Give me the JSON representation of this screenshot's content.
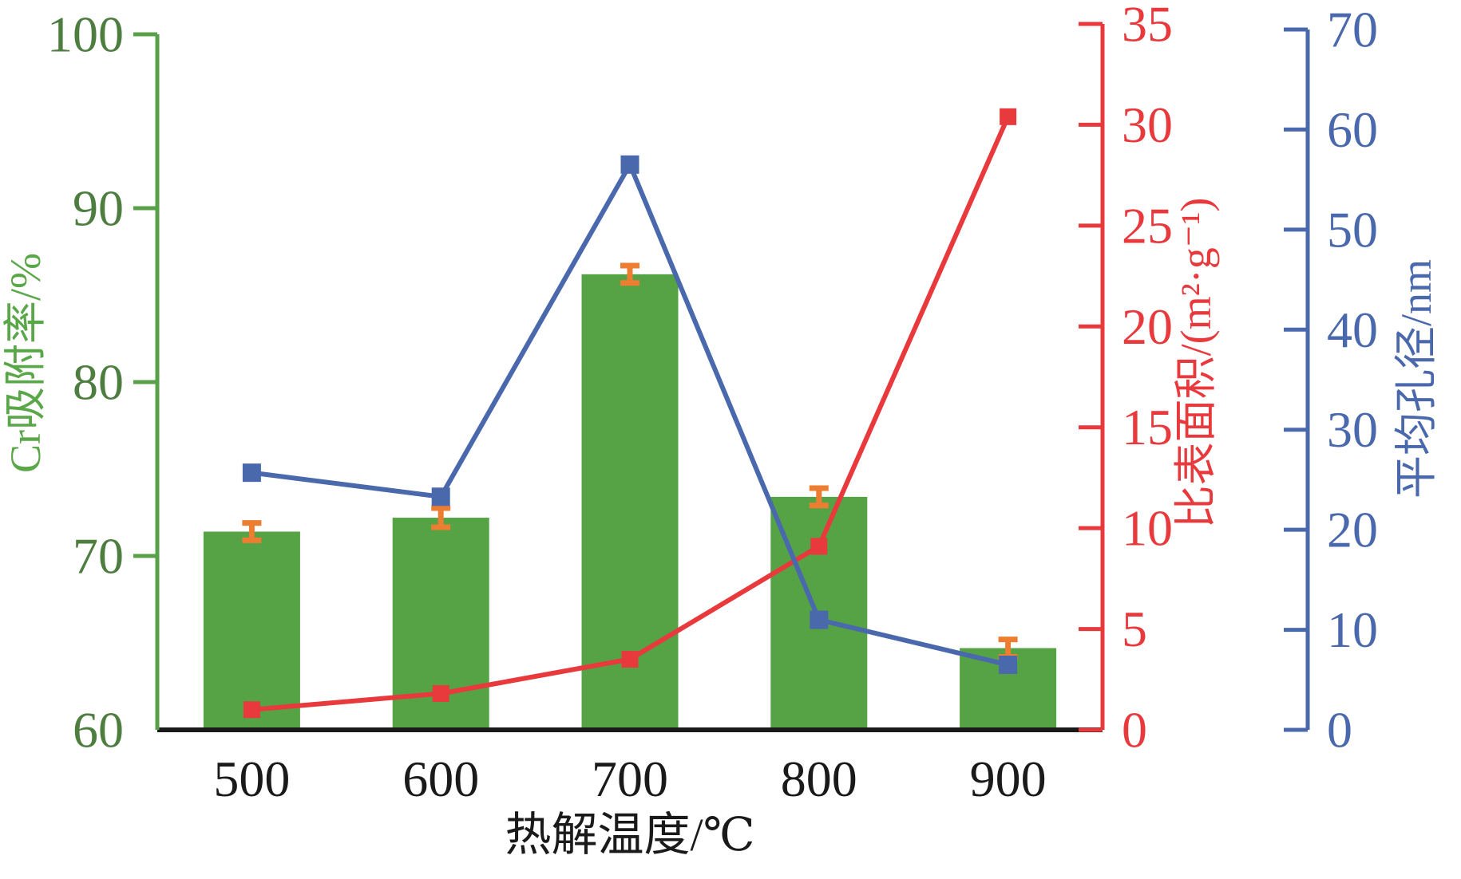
{
  "chart_data": {
    "type": "bar",
    "subtype": "combo-bar-line-dual-secondary-axes",
    "title": "",
    "grid": false,
    "legend": "none",
    "categories": [
      "500",
      "600",
      "700",
      "800",
      "900"
    ],
    "x_axis": {
      "title": "热解温度/℃",
      "tick_labels": [
        "500",
        "600",
        "700",
        "800",
        "900"
      ],
      "color": "#1a1a1a"
    },
    "left_axis": {
      "title": "Cr吸附率/%",
      "min": 60,
      "max": 100,
      "step": 10,
      "tick_labels": [
        "60",
        "70",
        "80",
        "90",
        "100"
      ],
      "spine_color": "#58a14a",
      "tick_label_color": "#4e7d40",
      "title_color": "#5aa74a"
    },
    "red_axis": {
      "title": "比表面积/(m²·g⁻¹)",
      "min": 0,
      "max": 35,
      "step": 5,
      "tick_labels": [
        "0",
        "5",
        "10",
        "15",
        "20",
        "25",
        "30",
        "35"
      ],
      "spine_color": "#e8393d",
      "tick_label_color": "#e8393d",
      "title_color": "#e8393d"
    },
    "blue_axis": {
      "title": "平均孔径/nm",
      "min": 0,
      "max": 70,
      "step": 10,
      "tick_labels": [
        "0",
        "10",
        "20",
        "30",
        "40",
        "50",
        "60",
        "70"
      ],
      "spine_color": "#4a69ad",
      "tick_label_color": "#4a69ad",
      "title_color": "#4a69ad"
    },
    "series": [
      {
        "name": "Cr吸附率",
        "type": "bar",
        "axis": "left",
        "values": [
          71.4,
          72.2,
          86.2,
          73.4,
          64.7
        ],
        "errors": [
          0.5,
          0.55,
          0.5,
          0.5,
          0.5
        ],
        "color": "#56a345",
        "error_color": "#ed7d31"
      },
      {
        "name": "比表面积",
        "type": "line",
        "axis": "red",
        "marker": "square",
        "values": [
          1.0,
          1.8,
          3.5,
          9.1,
          30.4
        ],
        "color": "#e8393d"
      },
      {
        "name": "平均孔径",
        "type": "line",
        "axis": "blue",
        "marker": "square",
        "values": [
          25.7,
          23.3,
          56.5,
          11.0,
          6.5
        ],
        "color": "#4a69ad"
      }
    ]
  },
  "colors": {
    "background": "#ffffff",
    "baseline": "#1a1a1a",
    "bar_green": "#56a345",
    "error_orange": "#ed7d31",
    "line_red": "#e8393d",
    "line_blue": "#4a69ad"
  }
}
